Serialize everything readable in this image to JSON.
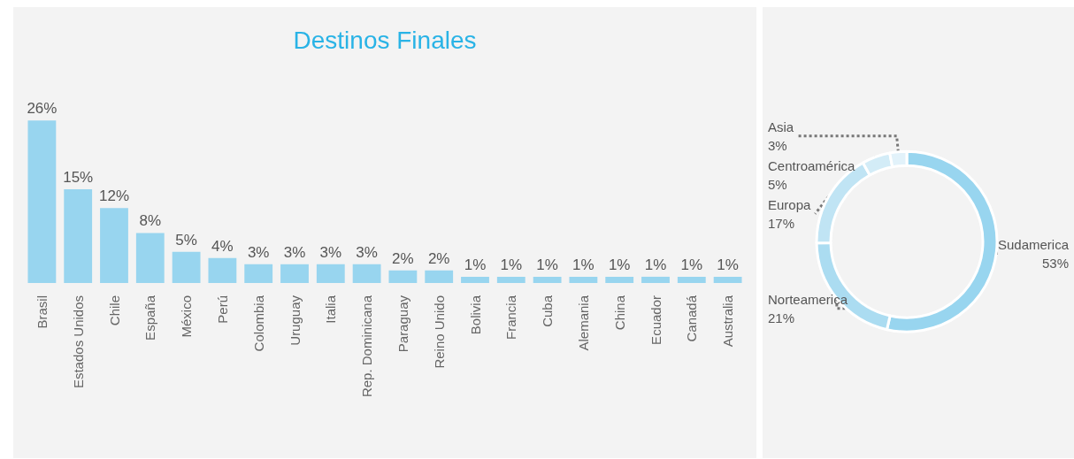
{
  "chart_data": [
    {
      "type": "bar",
      "title": "Destinos Finales",
      "categories": [
        "Brasil",
        "Estados Unidos",
        "Chile",
        "España",
        "México",
        "Perú",
        "Colombia",
        "Uruguay",
        "Italia",
        "Rep. Dominicana",
        "Paraguay",
        "Reino Unido",
        "Bolivia",
        "Francia",
        "Cuba",
        "Alemania",
        "China",
        "Ecuador",
        "Canadá",
        "Australia"
      ],
      "values": [
        26,
        15,
        12,
        8,
        5,
        4,
        3,
        3,
        3,
        3,
        2,
        2,
        1,
        1,
        1,
        1,
        1,
        1,
        1,
        1
      ],
      "value_labels": [
        "26%",
        "15%",
        "12%",
        "8%",
        "5%",
        "4%",
        "3%",
        "3%",
        "3%",
        "3%",
        "2%",
        "2%",
        "1%",
        "1%",
        "1%",
        "1%",
        "1%",
        "1%",
        "1%",
        "1%"
      ],
      "color": "#98d5ef",
      "legend": false,
      "tick_labels": "x"
    },
    {
      "type": "donut",
      "categories": [
        "Sudamerica",
        "Norteamerica",
        "Europa",
        "Centroamérica",
        "Asia"
      ],
      "values": [
        53,
        21,
        17,
        5,
        3
      ],
      "value_labels": [
        "53%",
        "21%",
        "17%",
        "5%",
        "3%"
      ],
      "colors": [
        "#98d5ef",
        "#abdcf1",
        "#c0e4f4",
        "#d3ecf7",
        "#e2f2fa"
      ],
      "legend": false
    }
  ]
}
